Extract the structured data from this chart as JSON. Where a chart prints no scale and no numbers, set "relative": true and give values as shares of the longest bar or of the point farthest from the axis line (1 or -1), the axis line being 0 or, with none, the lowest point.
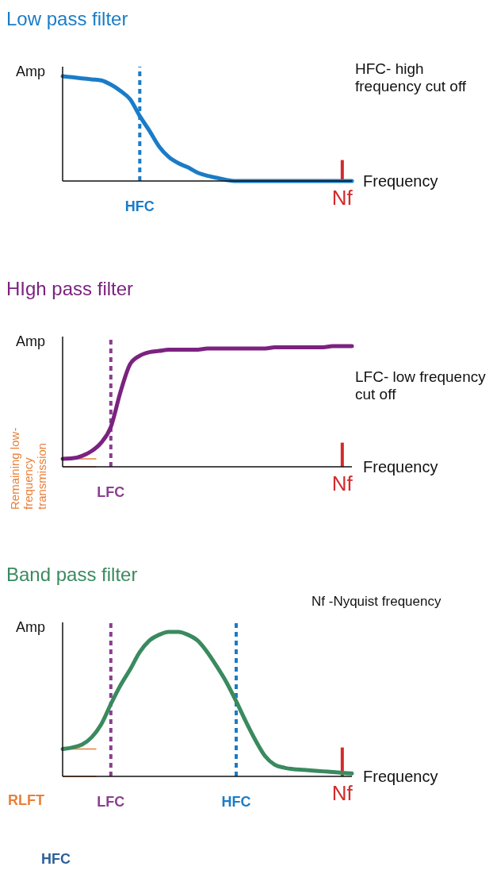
{
  "chart_data": [
    {
      "type": "line",
      "title": "Low pass filter",
      "ylabel": "Amp",
      "xlabel": "Frequency",
      "relative": true,
      "grid": false,
      "legend": false,
      "marker": "none",
      "line_style": "solid",
      "categories": [
        null,
        null,
        null,
        null,
        null,
        null,
        null,
        null,
        "HFC",
        null,
        null,
        null,
        null,
        null,
        null,
        null,
        null,
        null,
        null,
        null,
        null,
        null,
        null,
        null,
        null,
        null,
        null,
        null,
        null,
        "Nf",
        null
      ],
      "series": [
        {
          "color": "#1a7cc8",
          "values": [
            1.0,
            0.99,
            0.98,
            0.97,
            0.96,
            0.92,
            0.86,
            0.78,
            0.62,
            0.48,
            0.33,
            0.23,
            0.17,
            0.13,
            0.08,
            0.05,
            0.03,
            0.01,
            0,
            0,
            0,
            0,
            0,
            0,
            0,
            0,
            0,
            0,
            0,
            0,
            0
          ]
        }
      ],
      "ref_lines": [
        {
          "axis": "x",
          "value": "HFC",
          "color": "#1a7cc8",
          "line_style": "dashed"
        },
        {
          "axis": "x",
          "value": "Nf",
          "color": "#d42a2a",
          "line_style": "solid"
        }
      ],
      "annotations": [
        "HFC- high frequency cut off"
      ]
    },
    {
      "type": "line",
      "title": "HIgh pass filter",
      "ylabel": "Amp",
      "xlabel": "Frequency",
      "relative": true,
      "grid": false,
      "legend": false,
      "marker": "none",
      "line_style": "solid",
      "categories": [
        null,
        null,
        null,
        null,
        null,
        "LFC",
        null,
        null,
        null,
        null,
        null,
        null,
        null,
        null,
        null,
        null,
        null,
        null,
        null,
        null,
        null,
        null,
        null,
        null,
        null,
        null,
        null,
        null,
        null,
        "Nf",
        null
      ],
      "series": [
        {
          "color": "#7b2280",
          "values": [
            0.066,
            0.07,
            0.09,
            0.13,
            0.2,
            0.33,
            0.62,
            0.85,
            0.92,
            0.95,
            0.96,
            0.97,
            0.97,
            0.97,
            0.97,
            0.98,
            0.98,
            0.98,
            0.98,
            0.98,
            0.98,
            0.98,
            0.99,
            0.99,
            0.99,
            0.99,
            0.99,
            0.99,
            1.0,
            1.0,
            1.0
          ]
        }
      ],
      "ref_lines": [
        {
          "axis": "x",
          "value": "LFC",
          "color": "#8a3f8f",
          "line_style": "dashed"
        },
        {
          "axis": "x",
          "value": "Nf",
          "color": "#d42a2a",
          "line_style": "solid"
        },
        {
          "axis": "y",
          "value": 0.066,
          "color": "#e8803a"
        },
        {
          "axis": "y",
          "value": 0,
          "color": "#e8803a"
        }
      ],
      "annotations": [
        "LFC- low frequency cut off",
        "Remaining low-frequency transmission"
      ]
    },
    {
      "type": "line",
      "title": "Band pass filter",
      "ylabel": "Amp",
      "xlabel": "Frequency",
      "relative": true,
      "grid": false,
      "legend": false,
      "marker": "none",
      "line_style": "solid",
      "categories": [
        null,
        null,
        null,
        null,
        null,
        "LFC",
        null,
        null,
        null,
        null,
        null,
        null,
        null,
        null,
        null,
        null,
        null,
        null,
        "HFC",
        null,
        null,
        null,
        null,
        null,
        null,
        null,
        null,
        null,
        null,
        "Nf",
        null
      ],
      "series": [
        {
          "color": "#3a8a5f",
          "values": [
            0.19,
            0.2,
            0.22,
            0.27,
            0.36,
            0.5,
            0.63,
            0.74,
            0.86,
            0.94,
            0.98,
            1.0,
            1.0,
            0.98,
            0.94,
            0.86,
            0.76,
            0.65,
            0.52,
            0.38,
            0.25,
            0.14,
            0.08,
            0.06,
            0.05,
            0.045,
            0.04,
            0.035,
            0.03,
            0.025,
            0.02
          ]
        }
      ],
      "ref_lines": [
        {
          "axis": "x",
          "value": "LFC",
          "color": "#8a3f8f",
          "line_style": "dashed"
        },
        {
          "axis": "x",
          "value": "HFC",
          "color": "#1a7cc8",
          "line_style": "dashed"
        },
        {
          "axis": "x",
          "value": "Nf",
          "color": "#d42a2a",
          "line_style": "solid"
        },
        {
          "axis": "y",
          "value": 0.19,
          "color": "#e8803a"
        },
        {
          "axis": "y",
          "value": 0,
          "color": "#e8803a"
        }
      ],
      "annotations": [
        "Nf -Nyquist frequency",
        "RLFT",
        "HFC"
      ]
    }
  ]
}
